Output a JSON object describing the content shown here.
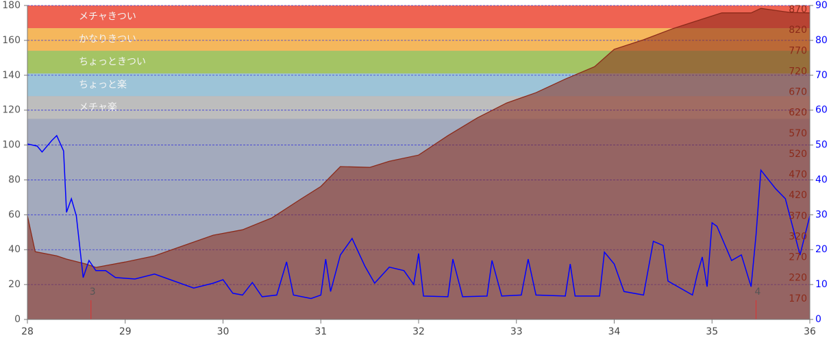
{
  "chart_data": {
    "type": "area-line",
    "xlim": [
      28,
      36
    ],
    "xticks": [
      28,
      29,
      30,
      31,
      32,
      33,
      34,
      35,
      36
    ],
    "ylim": [
      0,
      180
    ],
    "yticks": [
      0,
      20,
      40,
      60,
      80,
      100,
      120,
      140,
      160,
      180
    ],
    "y2lim": [
      120,
      880
    ],
    "y2ticks": [
      170,
      220,
      270,
      320,
      370,
      420,
      470,
      520,
      570,
      620,
      670,
      720,
      770,
      820,
      870
    ],
    "y3lim": [
      0,
      90
    ],
    "y3ticks": [
      0,
      10,
      20,
      30,
      40,
      50,
      60,
      70,
      80,
      90
    ],
    "grid": true,
    "background_color": "#a3aabd",
    "zones": [
      {
        "name": "メチャきつい",
        "from": 167,
        "to": 180,
        "color": "#ef6352"
      },
      {
        "name": "かなりきつい",
        "from": 154,
        "to": 167,
        "color": "#f5b75c"
      },
      {
        "name": "ちょっときつい",
        "from": 141,
        "to": 154,
        "color": "#a4c464"
      },
      {
        "name": "ちょっと楽",
        "from": 128,
        "to": 141,
        "color": "#9dc4d8"
      },
      {
        "name": "メチャ楽",
        "from": 115,
        "to": 128,
        "color": "#bdbdbd"
      }
    ],
    "series": [
      {
        "axis": "y2",
        "kind": "area",
        "color": "#8b2a1a",
        "x": [
          28,
          28.08,
          28.3,
          28.4,
          28.6,
          28.7,
          29,
          29.3,
          29.6,
          29.9,
          30.2,
          30.5,
          30.8,
          31,
          31.2,
          31.5,
          31.7,
          32,
          32.3,
          32.6,
          32.9,
          33.2,
          33.5,
          33.8,
          34,
          34.3,
          34.6,
          34.9,
          35.1,
          35.4,
          35.5,
          35.8,
          36
        ],
        "values": [
          371,
          284,
          274,
          266,
          254,
          246,
          259,
          274,
          299,
          324,
          337,
          366,
          412,
          442,
          490,
          488,
          503,
          518,
          565,
          608,
          644,
          669,
          702,
          732,
          774,
          797,
          824,
          847,
          862,
          862,
          873,
          863,
          862
        ]
      },
      {
        "axis": "y3",
        "kind": "line",
        "color": "#0000ff",
        "x": [
          28,
          28.1,
          28.15,
          28.25,
          28.3,
          28.37,
          28.4,
          28.45,
          28.5,
          28.57,
          28.63,
          28.7,
          28.8,
          28.9,
          29.1,
          29.3,
          29.5,
          29.7,
          29.9,
          30,
          30.1,
          30.2,
          30.3,
          30.4,
          30.55,
          30.65,
          30.72,
          30.9,
          31,
          31.05,
          31.1,
          31.2,
          31.32,
          31.45,
          31.55,
          31.7,
          31.85,
          31.95,
          32,
          32.05,
          32.3,
          32.35,
          32.45,
          32.7,
          32.75,
          32.85,
          33.05,
          33.12,
          33.2,
          33.5,
          33.55,
          33.6,
          33.85,
          33.9,
          34,
          34.1,
          34.3,
          34.4,
          34.5,
          34.55,
          34.8,
          34.85,
          34.9,
          34.95,
          35,
          35.05,
          35.2,
          35.3,
          35.4,
          35.45,
          35.5,
          35.65,
          35.75,
          35.9,
          36
        ],
        "values": [
          50.3,
          49.7,
          48,
          51.3,
          52.7,
          48.3,
          30.7,
          34.6,
          29.7,
          12,
          16.9,
          14,
          14,
          12,
          11.6,
          13,
          11,
          9,
          10.4,
          11.4,
          7.5,
          7,
          10.6,
          6.5,
          7,
          16.5,
          7,
          6,
          7,
          17.3,
          8,
          18.5,
          23.2,
          15.3,
          10.4,
          15,
          14,
          10,
          18.9,
          6.7,
          6.5,
          17.3,
          6.5,
          6.7,
          16.9,
          6.7,
          7,
          17.3,
          7,
          6.7,
          15.9,
          6.7,
          6.7,
          19.3,
          15.9,
          8,
          7,
          22.4,
          21.2,
          11,
          7,
          13,
          17.9,
          9.4,
          27.7,
          26.7,
          16.9,
          18.5,
          9.4,
          24.2,
          42.8,
          37.5,
          34.6,
          18.5,
          29.7
        ]
      }
    ],
    "laps": {
      "x": [
        28.65,
        35.45
      ],
      "labels": [
        3,
        4
      ],
      "color": "#e03030"
    }
  }
}
